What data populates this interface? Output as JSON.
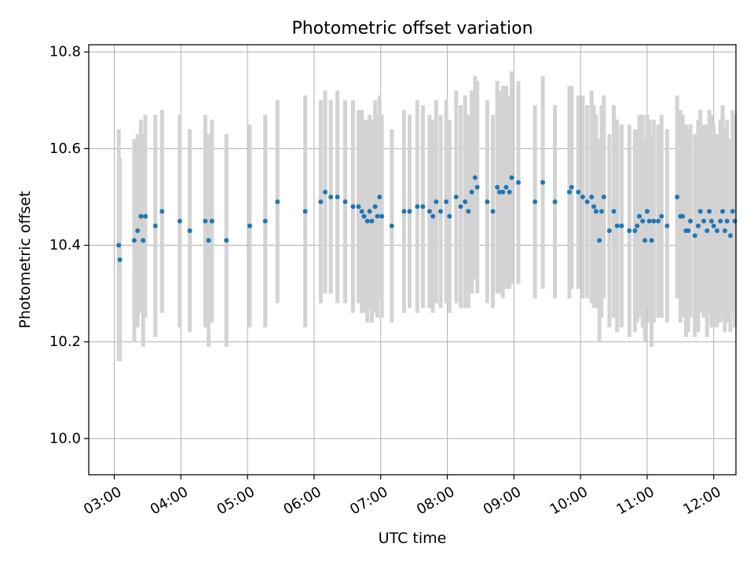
{
  "chart_data": {
    "type": "scatter",
    "title": "Photometric offset variation",
    "xlabel": "UTC time",
    "ylabel": "Photometric offset",
    "x_ticks": [
      "03:00",
      "04:00",
      "05:00",
      "06:00",
      "07:00",
      "08:00",
      "09:00",
      "10:00",
      "11:00",
      "12:00"
    ],
    "y_ticks": [
      "10.0",
      "10.2",
      "10.4",
      "10.6",
      "10.8"
    ],
    "xlim": [
      "02:37",
      "12:20"
    ],
    "ylim": [
      9.925,
      10.815
    ],
    "grid": true,
    "colors": {
      "points": "#1f77b4",
      "errorbars": "#d3d3d3",
      "grid": "#b0b0b0"
    },
    "series": [
      {
        "points": [
          [
            "03:04",
            10.4,
            0.24
          ],
          [
            "03:05",
            10.37,
            0.21
          ],
          [
            "03:18",
            10.41,
            0.21
          ],
          [
            "03:21",
            10.43,
            0.2
          ],
          [
            "03:24",
            10.46,
            0.2
          ],
          [
            "03:26",
            10.41,
            0.22
          ],
          [
            "03:28",
            10.46,
            0.21
          ],
          [
            "03:37",
            10.44,
            0.23
          ],
          [
            "03:43",
            10.47,
            0.21
          ],
          [
            "03:59",
            10.45,
            0.22
          ],
          [
            "04:08",
            10.43,
            0.21
          ],
          [
            "04:22",
            10.45,
            0.22
          ],
          [
            "04:25",
            10.41,
            0.22
          ],
          [
            "04:28",
            10.45,
            0.21
          ],
          [
            "04:41",
            10.41,
            0.22
          ],
          [
            "05:02",
            10.44,
            0.21
          ],
          [
            "05:16",
            10.45,
            0.22
          ],
          [
            "05:27",
            10.49,
            0.21
          ],
          [
            "05:52",
            10.47,
            0.24
          ],
          [
            "06:06",
            10.49,
            0.21
          ],
          [
            "06:10",
            10.51,
            0.21
          ],
          [
            "06:15",
            10.5,
            0.2
          ],
          [
            "06:21",
            10.5,
            0.22
          ],
          [
            "06:28",
            10.49,
            0.21
          ],
          [
            "06:35",
            10.48,
            0.22
          ],
          [
            "06:40",
            10.48,
            0.2
          ],
          [
            "06:43",
            10.47,
            0.21
          ],
          [
            "06:45",
            10.46,
            0.2
          ],
          [
            "06:48",
            10.45,
            0.21
          ],
          [
            "06:50",
            10.47,
            0.2
          ],
          [
            "06:52",
            10.45,
            0.21
          ],
          [
            "06:55",
            10.48,
            0.22
          ],
          [
            "06:57",
            10.46,
            0.21
          ],
          [
            "06:59",
            10.5,
            0.21
          ],
          [
            "07:01",
            10.46,
            0.21
          ],
          [
            "07:10",
            10.44,
            0.2
          ],
          [
            "07:21",
            10.47,
            0.21
          ],
          [
            "07:26",
            10.47,
            0.2
          ],
          [
            "07:33",
            10.48,
            0.22
          ],
          [
            "07:38",
            10.48,
            0.21
          ],
          [
            "07:44",
            10.47,
            0.2
          ],
          [
            "07:47",
            10.46,
            0.2
          ],
          [
            "07:50",
            10.49,
            0.21
          ],
          [
            "07:54",
            10.47,
            0.2
          ],
          [
            "07:59",
            10.49,
            0.21
          ],
          [
            "08:02",
            10.46,
            0.2
          ],
          [
            "08:08",
            10.5,
            0.22
          ],
          [
            "08:12",
            10.48,
            0.21
          ],
          [
            "08:16",
            10.49,
            0.22
          ],
          [
            "08:19",
            10.47,
            0.2
          ],
          [
            "08:22",
            10.51,
            0.21
          ],
          [
            "08:25",
            10.54,
            0.21
          ],
          [
            "08:27",
            10.52,
            0.22
          ],
          [
            "08:36",
            10.49,
            0.21
          ],
          [
            "08:41",
            10.47,
            0.2
          ],
          [
            "08:45",
            10.52,
            0.22
          ],
          [
            "08:47",
            10.51,
            0.21
          ],
          [
            "08:50",
            10.51,
            0.22
          ],
          [
            "08:53",
            10.52,
            0.21
          ],
          [
            "08:56",
            10.51,
            0.2
          ],
          [
            "08:58",
            10.54,
            0.22
          ],
          [
            "09:04",
            10.53,
            0.21
          ],
          [
            "09:19",
            10.49,
            0.2
          ],
          [
            "09:26",
            10.53,
            0.22
          ],
          [
            "09:37",
            10.49,
            0.2
          ],
          [
            "09:50",
            10.51,
            0.22
          ],
          [
            "09:52",
            10.52,
            0.21
          ],
          [
            "09:58",
            10.51,
            0.2
          ],
          [
            "10:02",
            10.5,
            0.21
          ],
          [
            "10:06",
            10.49,
            0.2
          ],
          [
            "10:10",
            10.5,
            0.22
          ],
          [
            "10:12",
            10.48,
            0.21
          ],
          [
            "10:14",
            10.47,
            0.2
          ],
          [
            "10:17",
            10.41,
            0.21
          ],
          [
            "10:19",
            10.47,
            0.22
          ],
          [
            "10:21",
            10.5,
            0.21
          ],
          [
            "10:26",
            10.43,
            0.2
          ],
          [
            "10:30",
            10.47,
            0.22
          ],
          [
            "10:33",
            10.44,
            0.22
          ],
          [
            "10:37",
            10.44,
            0.21
          ],
          [
            "10:44",
            10.43,
            0.22
          ],
          [
            "10:49",
            10.43,
            0.21
          ],
          [
            "10:51",
            10.44,
            0.2
          ],
          [
            "10:53",
            10.46,
            0.21
          ],
          [
            "10:56",
            10.45,
            0.22
          ],
          [
            "10:58",
            10.41,
            0.21
          ],
          [
            "11:00",
            10.47,
            0.2
          ],
          [
            "11:02",
            10.45,
            0.21
          ],
          [
            "11:04",
            10.41,
            0.22
          ],
          [
            "11:06",
            10.45,
            0.21
          ],
          [
            "11:10",
            10.45,
            0.2
          ],
          [
            "11:13",
            10.46,
            0.21
          ],
          [
            "11:18",
            10.44,
            0.2
          ],
          [
            "11:27",
            10.5,
            0.21
          ],
          [
            "11:30",
            10.46,
            0.22
          ],
          [
            "11:32",
            10.46,
            0.21
          ],
          [
            "11:35",
            10.43,
            0.22
          ],
          [
            "11:37",
            10.43,
            0.21
          ],
          [
            "11:39",
            10.45,
            0.2
          ],
          [
            "11:43",
            10.42,
            0.21
          ],
          [
            "11:46",
            10.44,
            0.22
          ],
          [
            "11:48",
            10.47,
            0.21
          ],
          [
            "11:51",
            10.45,
            0.2
          ],
          [
            "11:54",
            10.43,
            0.22
          ],
          [
            "11:56",
            10.47,
            0.21
          ],
          [
            "11:58",
            10.45,
            0.22
          ],
          [
            "12:00",
            10.44,
            0.21
          ],
          [
            "12:03",
            10.43,
            0.2
          ],
          [
            "12:06",
            10.45,
            0.21
          ],
          [
            "12:08",
            10.47,
            0.22
          ],
          [
            "12:10",
            10.43,
            0.21
          ],
          [
            "12:12",
            10.45,
            0.21
          ],
          [
            "12:15",
            10.42,
            0.2
          ],
          [
            "12:17",
            10.47,
            0.21
          ],
          [
            "12:19",
            10.45,
            0.22
          ]
        ]
      }
    ]
  }
}
